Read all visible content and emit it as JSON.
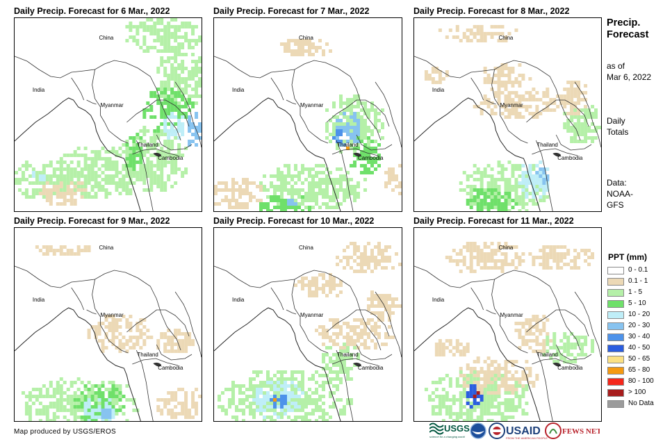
{
  "panels": [
    {
      "title": "Daily Precip. Forecast for 6 Mar., 2022"
    },
    {
      "title": "Daily Precip. Forecast for 7 Mar., 2022"
    },
    {
      "title": "Daily Precip. Forecast for 8 Mar., 2022"
    },
    {
      "title": "Daily Precip. Forecast for 9 Mar., 2022"
    },
    {
      "title": "Daily Precip. Forecast for 10 Mar., 2022"
    },
    {
      "title": "Daily Precip. Forecast for 11 Mar., 2022"
    }
  ],
  "map_labels": {
    "china": "China",
    "india": "India",
    "myanmar": "Myanmar",
    "thailand": "Thailand",
    "cambodia": "Cambodia"
  },
  "side": {
    "title_line1": "Precip.",
    "title_line2": "Forecast",
    "asof_line1": "as of",
    "asof_line2": "Mar 6, 2022",
    "totals_line1": "Daily",
    "totals_line2": "Totals",
    "data_line1": "Data:",
    "data_line2": "NOAA-",
    "data_line3": "GFS"
  },
  "legend": {
    "title": "PPT (mm)",
    "items": [
      {
        "label": "0 - 0.1",
        "color": "#ffffff"
      },
      {
        "label": "0.1 - 1",
        "color": "#ecd9b6"
      },
      {
        "label": "1 - 5",
        "color": "#b5f0a8"
      },
      {
        "label": "5 - 10",
        "color": "#6fe06a"
      },
      {
        "label": "10 - 20",
        "color": "#bfeef8"
      },
      {
        "label": "20 - 30",
        "color": "#87c3f0"
      },
      {
        "label": "30 - 40",
        "color": "#4d92ea"
      },
      {
        "label": "40 - 50",
        "color": "#2a5de0"
      },
      {
        "label": "50 - 65",
        "color": "#fbe184"
      },
      {
        "label": "65 - 80",
        "color": "#f59a11"
      },
      {
        "label": "80 - 100",
        "color": "#f5271b"
      },
      {
        "label": "> 100",
        "color": "#a81d1d"
      },
      {
        "label": "No Data",
        "color": "#9b9b9b"
      }
    ]
  },
  "credit": "Map produced by USGS/EROS",
  "logos": {
    "usgs": "USGS",
    "usgs_tagline": "science for a changing world",
    "noaa": "NOAA",
    "usaid": "USAID",
    "usaid_tagline": "FROM THE AMERICAN PEOPLE",
    "fewsnet": "FEWS NET"
  }
}
